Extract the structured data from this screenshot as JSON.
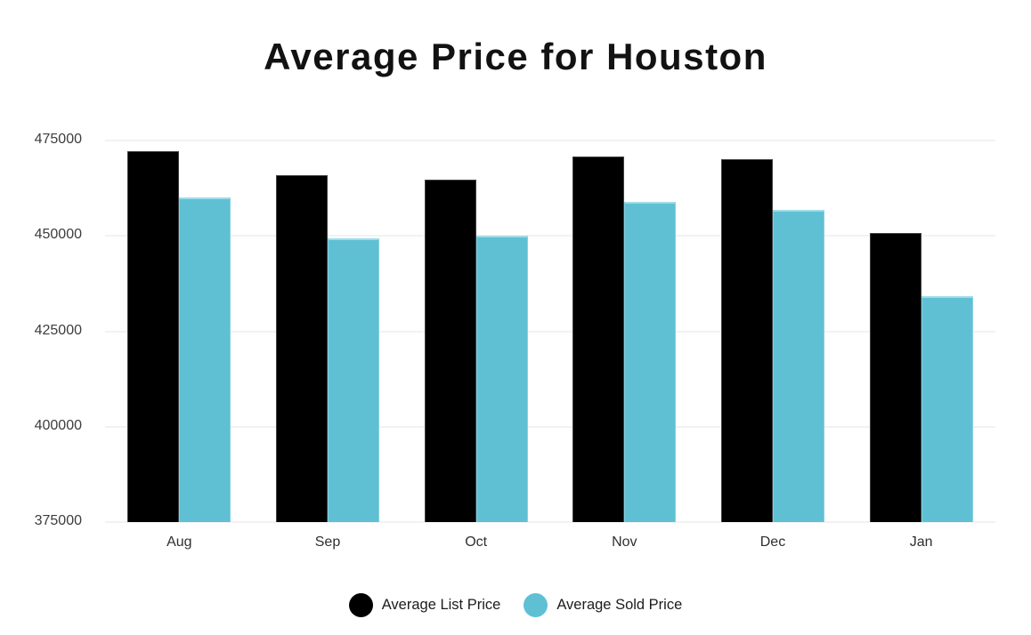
{
  "title": "Average Price for Houston",
  "chart_data": {
    "type": "bar",
    "title": "Average Price for Houston",
    "categories": [
      "Aug",
      "Sep",
      "Oct",
      "Nov",
      "Dec",
      "Jan"
    ],
    "series": [
      {
        "name": "Average List Price",
        "color": "#000000",
        "values": [
          472300,
          465800,
          464800,
          470900,
          470200,
          450800
        ]
      },
      {
        "name": "Average Sold Price",
        "color": "#5fc0d4",
        "values": [
          460200,
          449400,
          450100,
          459000,
          456900,
          434100
        ]
      }
    ],
    "xlabel": "",
    "ylabel": "",
    "ylim": [
      375000,
      475000
    ],
    "yticks": [
      375000,
      400000,
      425000,
      450000,
      475000
    ],
    "grid": true,
    "legend_position": "bottom",
    "colors": {
      "list_bar": "#000000",
      "sold_bar": "#5fc0d4",
      "grid_line": "#f2f2f2",
      "tick_text": "#3d3d3d",
      "title_text": "#121212",
      "legend_text": "#1c1c1c"
    }
  }
}
